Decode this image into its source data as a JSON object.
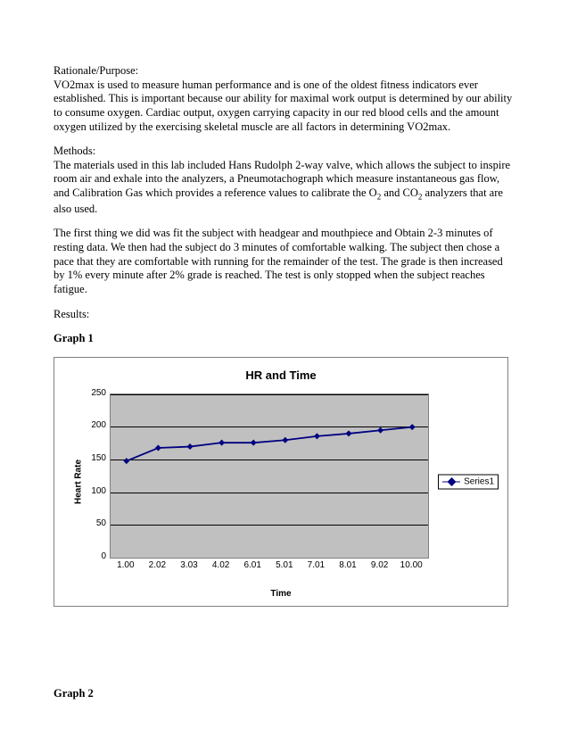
{
  "sections": {
    "rationale_head": "Rationale/Purpose:",
    "rationale_body": "VO2max is used to measure human performance and is one of the oldest fitness indicators ever established. This is important because our ability for maximal work output is determined by our ability to consume oxygen. Cardiac output, oxygen carrying capacity in our red blood cells and the amount oxygen utilized by the exercising skeletal muscle are all factors in determining VO2max.",
    "methods_head": "Methods:",
    "methods_body_pre": "The materials used in this lab included Hans Rudolph 2-way valve, which allows the subject to inspire room air and exhale into the analyzers, a Pneumotachograph which measure instantaneous gas flow, and Calibration Gas  which provides a reference values to calibrate the O",
    "methods_body_mid": " and CO",
    "methods_body_post": " analyzers that are also used.",
    "methods_para2": "The first thing we did was fit the subject with headgear and mouthpiece and Obtain 2-3 minutes of resting data. We then had the subject do 3 minutes of comfortable walking. The subject then chose a pace that they are comfortable with running for the remainder of the test. The grade is then increased by 1% every minute after 2% grade is reached. The test is only stopped when the subject reaches fatigue.",
    "results_head": "Results:",
    "graph1_head": "Graph 1",
    "graph2_head": "Graph 2"
  },
  "chart1": {
    "type": "line",
    "title": "HR and Time",
    "ylabel": "Heart Rate",
    "xlabel": "Time",
    "legend_label": "Series1",
    "series_color": "#000080",
    "plot_bg": "#c0c0c0",
    "grid_color": "#000000",
    "border_color": "#808080",
    "ylim": [
      0,
      250
    ],
    "yticks": [
      0,
      50,
      100,
      150,
      200,
      250
    ],
    "x_categories": [
      "1.00",
      "2.02",
      "3.03",
      "4.02",
      "6.01",
      "5.01",
      "7.01",
      "8.01",
      "9.02",
      "10.00"
    ],
    "values": [
      148,
      168,
      170,
      176,
      176,
      180,
      186,
      190,
      195,
      200
    ],
    "marker": "diamond",
    "marker_size": 7,
    "line_width": 1.8,
    "title_fontsize": 13,
    "label_fontsize": 10,
    "tick_fontsize": 10
  }
}
